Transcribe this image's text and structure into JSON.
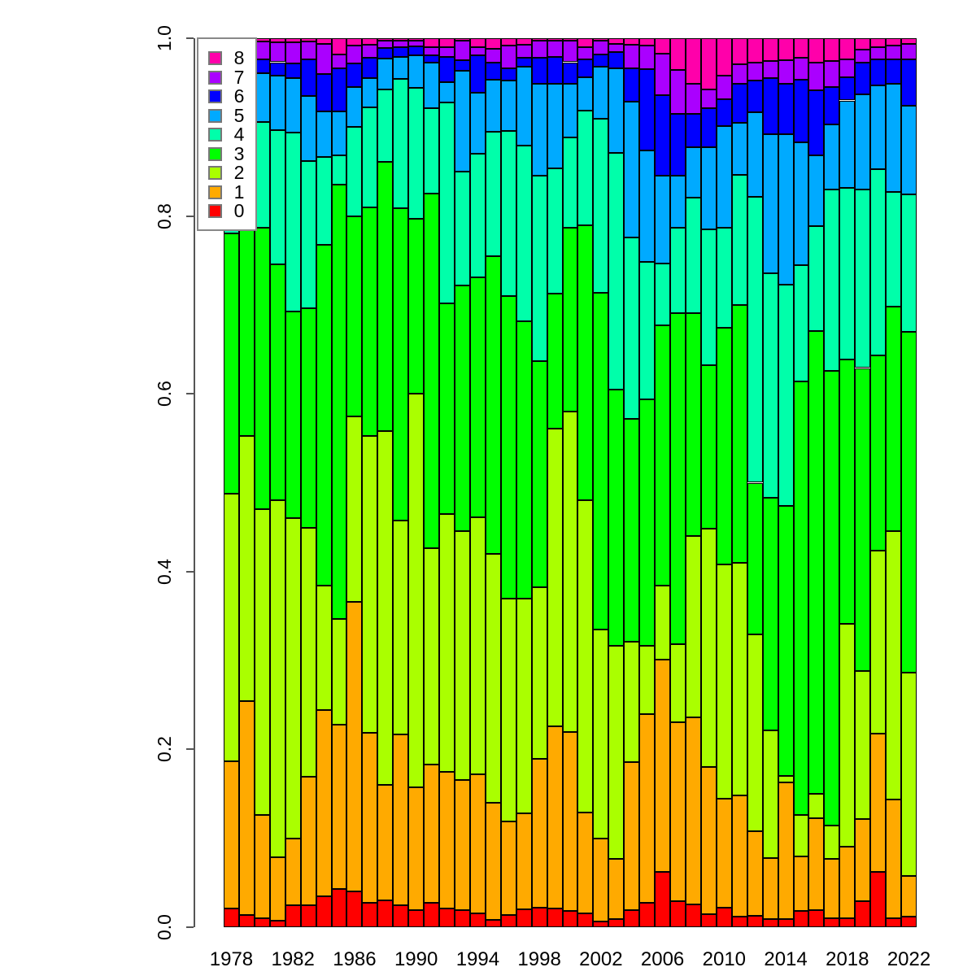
{
  "chart_data": {
    "type": "bar",
    "stacked": true,
    "normalized": true,
    "title": "",
    "xlabel": "",
    "ylabel": "",
    "ylim": [
      0,
      1
    ],
    "grid": false,
    "legend_position": "top-left",
    "y_tick_values": [
      0,
      0.2,
      0.4,
      0.6,
      0.8,
      1.0
    ],
    "y_tick_labels": [
      "0.0",
      "0.2",
      "0.4",
      "0.6",
      "0.8",
      "1.0"
    ],
    "x_tick_labels": [
      "1978",
      "1982",
      "1986",
      "1990",
      "1994",
      "1998",
      "2002",
      "2006",
      "2010",
      "2014",
      "2018",
      "2022"
    ],
    "categories": [
      1978,
      1979,
      1980,
      1981,
      1982,
      1983,
      1984,
      1985,
      1986,
      1987,
      1988,
      1989,
      1990,
      1991,
      1992,
      1993,
      1994,
      1995,
      1996,
      1997,
      1998,
      1999,
      2000,
      2001,
      2002,
      2003,
      2004,
      2005,
      2006,
      2007,
      2008,
      2009,
      2010,
      2011,
      2012,
      2013,
      2014,
      2015,
      2016,
      2017,
      2018,
      2019,
      2020,
      2021,
      2022
    ],
    "legend_entries": [
      "8",
      "7",
      "6",
      "5",
      "4",
      "3",
      "2",
      "1",
      "0"
    ],
    "series": [
      {
        "name": "0",
        "color": "#FF0000",
        "values": [
          0.021,
          0.014,
          0.01,
          0.007,
          0.025,
          0.025,
          0.035,
          0.043,
          0.04,
          0.027,
          0.03,
          0.025,
          0.019,
          0.027,
          0.021,
          0.019,
          0.016,
          0.008,
          0.014,
          0.02,
          0.022,
          0.021,
          0.018,
          0.016,
          0.006,
          0.009,
          0.019,
          0.027,
          0.062,
          0.029,
          0.026,
          0.015,
          0.022,
          0.012,
          0.013,
          0.009,
          0.009,
          0.018,
          0.019,
          0.01,
          0.01,
          0.029,
          0.062,
          0.01,
          0.012
        ]
      },
      {
        "name": "1",
        "color": "#FFAA00",
        "values": [
          0.166,
          0.24,
          0.116,
          0.072,
          0.075,
          0.144,
          0.209,
          0.185,
          0.326,
          0.192,
          0.13,
          0.192,
          0.138,
          0.156,
          0.154,
          0.147,
          0.156,
          0.132,
          0.105,
          0.108,
          0.167,
          0.205,
          0.202,
          0.113,
          0.094,
          0.068,
          0.167,
          0.213,
          0.239,
          0.202,
          0.21,
          0.165,
          0.123,
          0.136,
          0.095,
          0.069,
          0.154,
          0.062,
          0.104,
          0.067,
          0.081,
          0.093,
          0.156,
          0.134,
          0.046
        ]
      },
      {
        "name": "2",
        "color": "#AAFF00",
        "values": [
          0.301,
          0.299,
          0.344,
          0.401,
          0.36,
          0.28,
          0.14,
          0.119,
          0.209,
          0.334,
          0.398,
          0.24,
          0.443,
          0.243,
          0.29,
          0.28,
          0.289,
          0.28,
          0.251,
          0.242,
          0.193,
          0.335,
          0.36,
          0.351,
          0.235,
          0.24,
          0.135,
          0.077,
          0.083,
          0.087,
          0.204,
          0.268,
          0.263,
          0.262,
          0.221,
          0.143,
          0.007,
          0.046,
          0.027,
          0.037,
          0.25,
          0.166,
          0.206,
          0.302,
          0.228
        ]
      },
      {
        "name": "3",
        "color": "#00FF00",
        "values": [
          0.292,
          0.237,
          0.317,
          0.266,
          0.233,
          0.247,
          0.384,
          0.488,
          0.225,
          0.257,
          0.303,
          0.352,
          0.197,
          0.399,
          0.237,
          0.276,
          0.27,
          0.335,
          0.34,
          0.312,
          0.255,
          0.152,
          0.207,
          0.31,
          0.379,
          0.288,
          0.251,
          0.277,
          0.293,
          0.373,
          0.251,
          0.184,
          0.266,
          0.29,
          0.171,
          0.262,
          0.304,
          0.488,
          0.521,
          0.512,
          0.298,
          0.341,
          0.219,
          0.252,
          0.384
        ]
      },
      {
        "name": "4",
        "color": "#00FFAA",
        "values": [
          0.14,
          0.138,
          0.119,
          0.151,
          0.201,
          0.166,
          0.098,
          0.033,
          0.1,
          0.112,
          0.081,
          0.145,
          0.147,
          0.096,
          0.226,
          0.128,
          0.139,
          0.14,
          0.186,
          0.197,
          0.208,
          0.141,
          0.101,
          0.129,
          0.195,
          0.266,
          0.204,
          0.154,
          0.07,
          0.096,
          0.13,
          0.153,
          0.113,
          0.146,
          0.322,
          0.253,
          0.249,
          0.131,
          0.118,
          0.204,
          0.193,
          0.201,
          0.21,
          0.129,
          0.154
        ]
      },
      {
        "name": "5",
        "color": "#00AAFF",
        "values": [
          0.038,
          0.032,
          0.055,
          0.061,
          0.061,
          0.073,
          0.052,
          0.05,
          0.045,
          0.033,
          0.035,
          0.025,
          0.037,
          0.052,
          0.023,
          0.113,
          0.069,
          0.058,
          0.056,
          0.089,
          0.104,
          0.095,
          0.061,
          0.037,
          0.059,
          0.095,
          0.153,
          0.126,
          0.098,
          0.058,
          0.056,
          0.092,
          0.114,
          0.059,
          0.095,
          0.156,
          0.169,
          0.138,
          0.079,
          0.073,
          0.098,
          0.107,
          0.094,
          0.122,
          0.1
        ]
      },
      {
        "name": "6",
        "color": "#0000FF",
        "values": [
          0.02,
          0.02,
          0.015,
          0.015,
          0.017,
          0.041,
          0.042,
          0.048,
          0.027,
          0.023,
          0.012,
          0.011,
          0.01,
          0.008,
          0.028,
          0.012,
          0.042,
          0.02,
          0.014,
          0.01,
          0.029,
          0.03,
          0.024,
          0.02,
          0.014,
          0.018,
          0.037,
          0.091,
          0.091,
          0.07,
          0.038,
          0.044,
          0.03,
          0.044,
          0.035,
          0.063,
          0.057,
          0.07,
          0.073,
          0.042,
          0.026,
          0.036,
          0.029,
          0.027,
          0.052
        ]
      },
      {
        "name": "7",
        "color": "#AA00FF",
        "values": [
          0.016,
          0.014,
          0.02,
          0.022,
          0.023,
          0.02,
          0.034,
          0.016,
          0.02,
          0.015,
          0.008,
          0.007,
          0.006,
          0.009,
          0.011,
          0.022,
          0.009,
          0.015,
          0.026,
          0.015,
          0.019,
          0.018,
          0.024,
          0.014,
          0.015,
          0.01,
          0.027,
          0.027,
          0.047,
          0.049,
          0.034,
          0.021,
          0.027,
          0.022,
          0.021,
          0.019,
          0.026,
          0.025,
          0.032,
          0.029,
          0.02,
          0.014,
          0.014,
          0.016,
          0.018
        ]
      },
      {
        "name": "8",
        "color": "#FF00AA",
        "values": [
          0.006,
          0.006,
          0.004,
          0.005,
          0.005,
          0.004,
          0.006,
          0.018,
          0.008,
          0.007,
          0.003,
          0.003,
          0.003,
          0.01,
          0.01,
          0.003,
          0.01,
          0.012,
          0.008,
          0.007,
          0.003,
          0.003,
          0.003,
          0.01,
          0.003,
          0.006,
          0.007,
          0.008,
          0.017,
          0.036,
          0.051,
          0.058,
          0.042,
          0.029,
          0.027,
          0.026,
          0.025,
          0.022,
          0.027,
          0.026,
          0.024,
          0.013,
          0.01,
          0.008,
          0.006
        ]
      }
    ]
  }
}
